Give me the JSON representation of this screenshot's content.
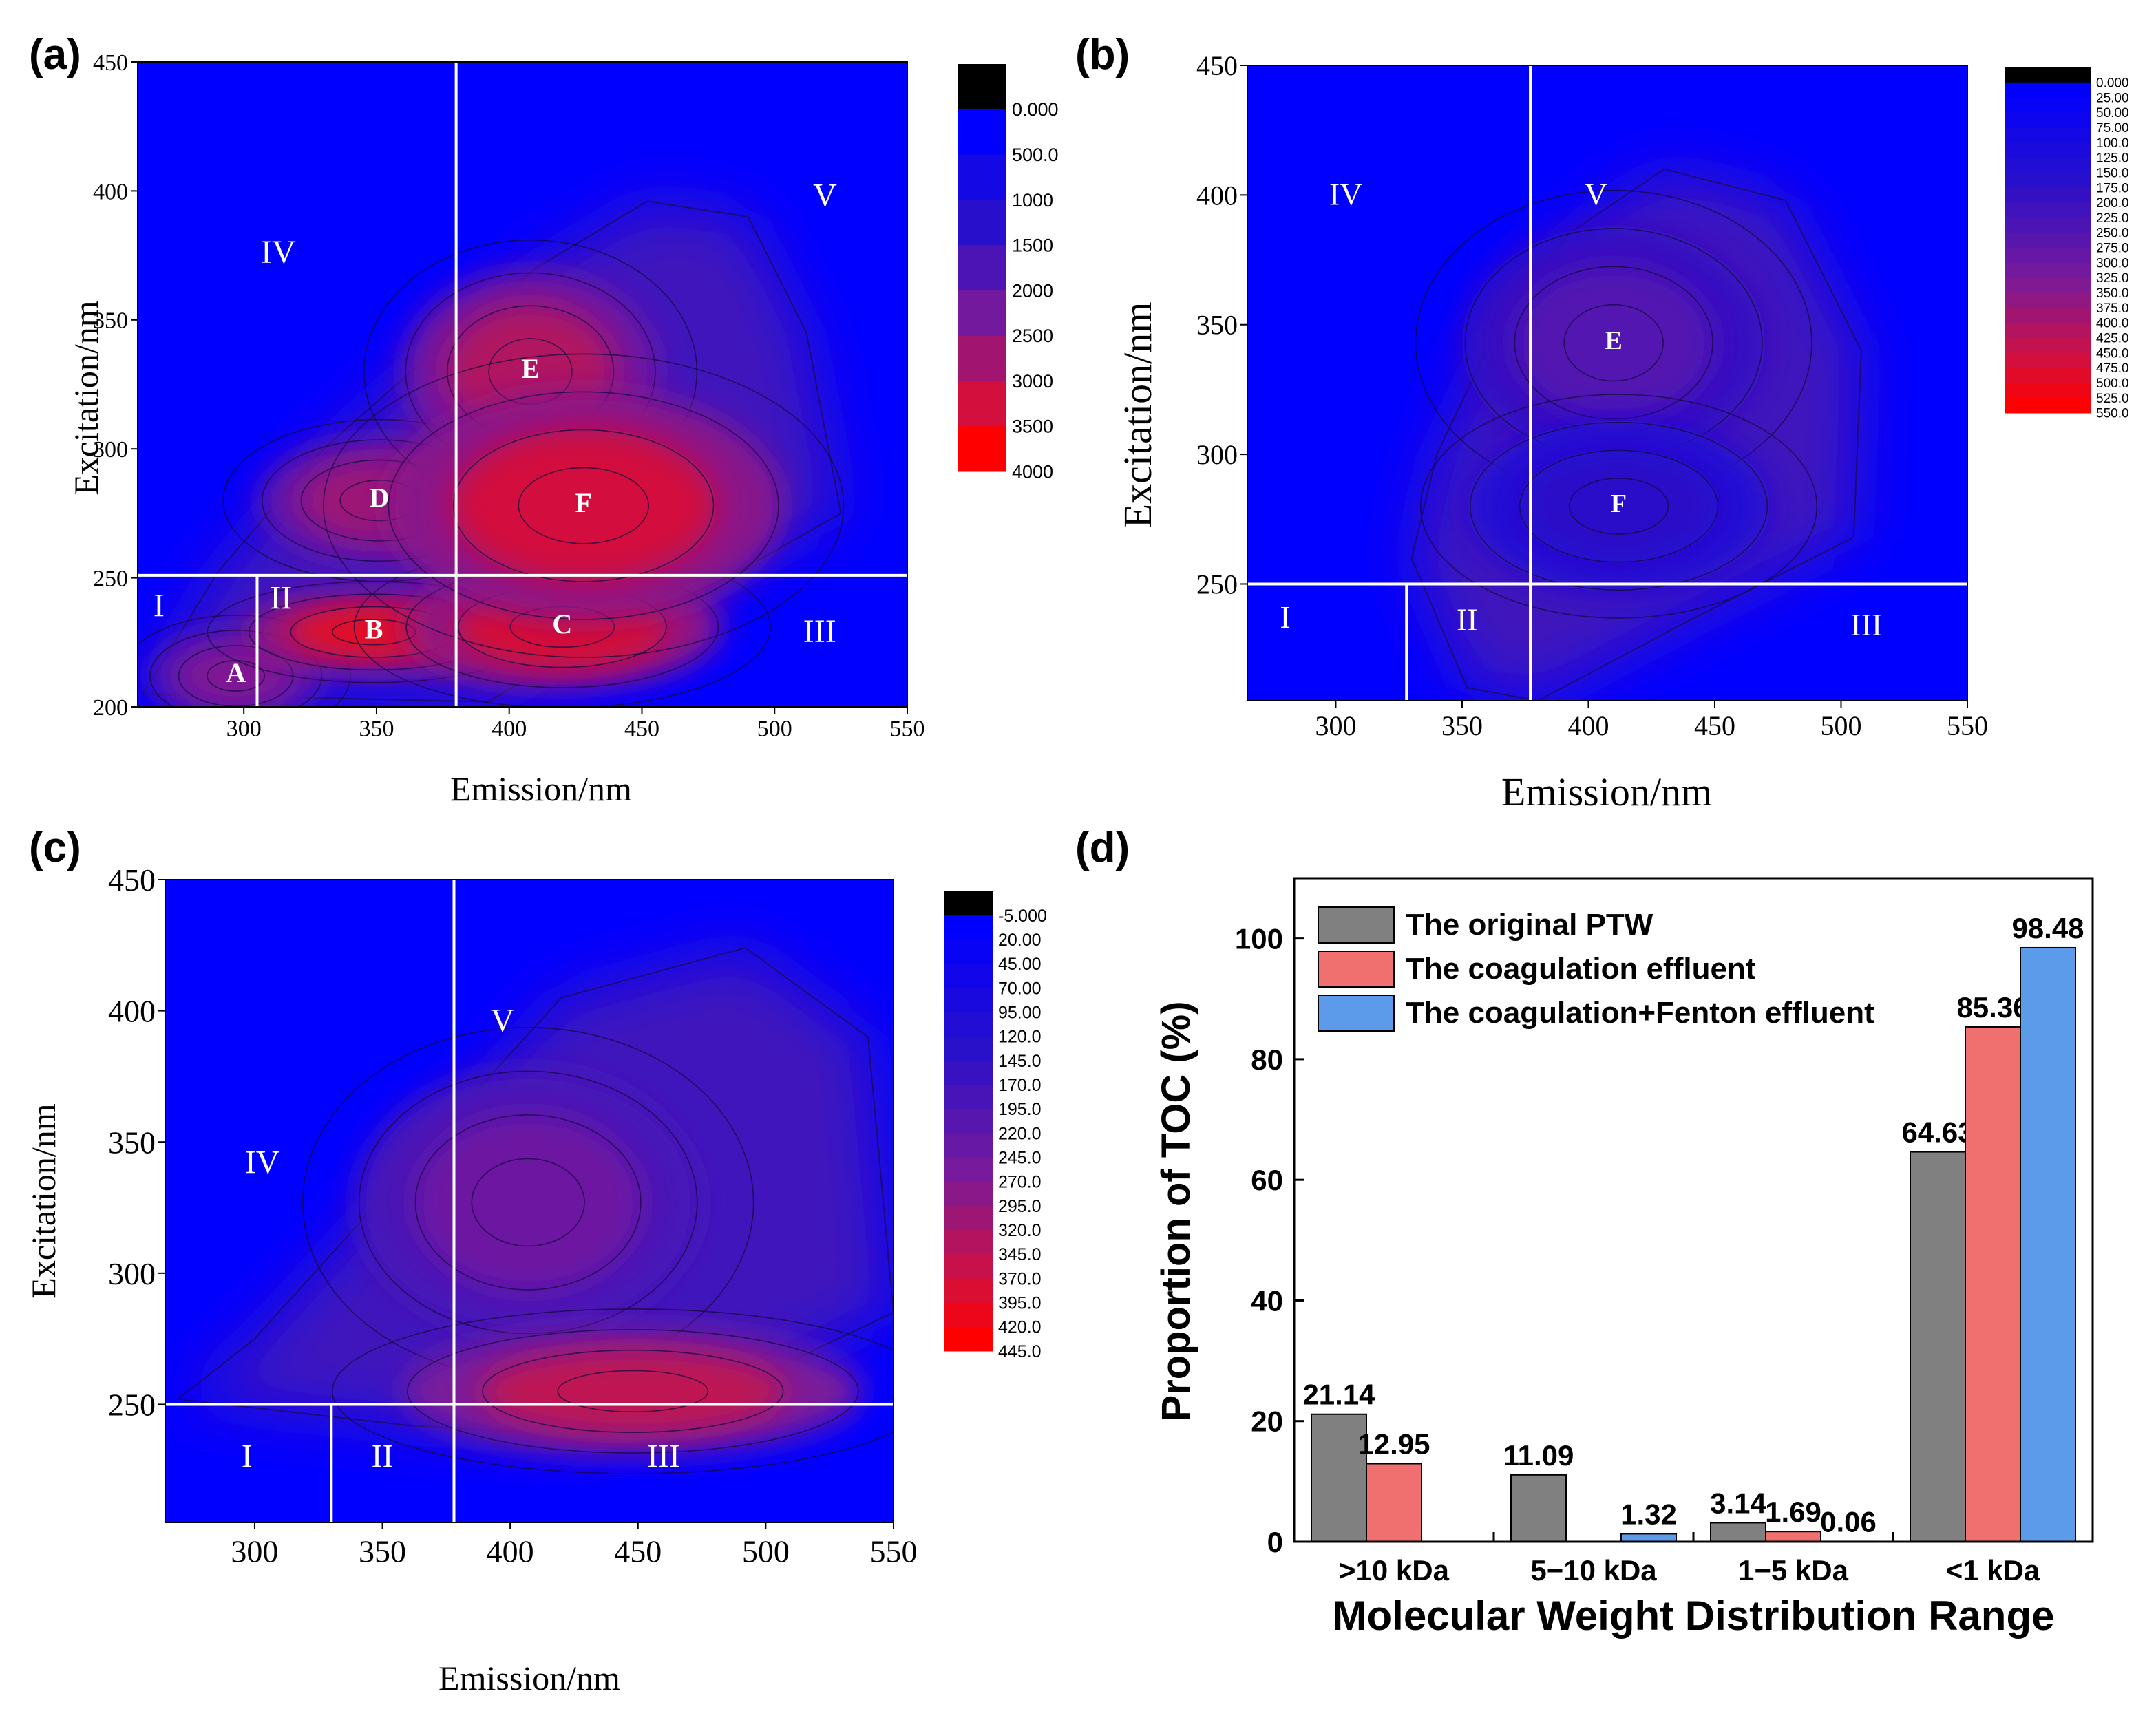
{
  "colors": {
    "plot_bg": "#0000ff",
    "low": "#2a10c8",
    "mid": "#7a1a9a",
    "high": "#d01040",
    "peak": "#ff0000",
    "divider": "#ffffff",
    "bar_gray": "#808080",
    "bar_red": "#f07070",
    "bar_blue": "#5b9bea"
  },
  "chart_data": [
    {
      "panel": "(a)",
      "type": "heatmap",
      "xlabel": "Emission/nm",
      "ylabel": "Excitation/nm",
      "xlim": [
        260,
        550
      ],
      "ylim": [
        200,
        450
      ],
      "xticks": [
        "300",
        "350",
        "400",
        "450",
        "500",
        "550"
      ],
      "yticks": [
        "200",
        "250",
        "300",
        "350",
        "400",
        "450"
      ],
      "dividers": {
        "emission": [
          380,
          305
        ],
        "excitation": 251
      },
      "region_labels": [
        {
          "text": "I",
          "em": 268,
          "ex": 238
        },
        {
          "text": "II",
          "em": 314,
          "ex": 241
        },
        {
          "text": "III",
          "em": 517,
          "ex": 228
        },
        {
          "text": "IV",
          "em": 313,
          "ex": 375
        },
        {
          "text": "V",
          "em": 519,
          "ex": 397
        }
      ],
      "peaks": [
        {
          "text": "A",
          "em": 297,
          "ex": 212,
          "level": 0.62,
          "sx": 22,
          "sy": 12
        },
        {
          "text": "B",
          "em": 349,
          "ex": 229,
          "level": 0.92,
          "sx": 32,
          "sy": 10
        },
        {
          "text": "C",
          "em": 420,
          "ex": 231,
          "level": 0.88,
          "sx": 40,
          "sy": 16
        },
        {
          "text": "D",
          "em": 351,
          "ex": 280,
          "level": 0.7,
          "sx": 30,
          "sy": 16
        },
        {
          "text": "E",
          "em": 408,
          "ex": 330,
          "level": 0.76,
          "sx": 32,
          "sy": 26
        },
        {
          "text": "F",
          "em": 428,
          "ex": 278,
          "level": 0.86,
          "sx": 50,
          "sy": 30
        }
      ],
      "envelope": [
        [
          262,
          205
        ],
        [
          290,
          252
        ],
        [
          330,
          300
        ],
        [
          372,
          338
        ],
        [
          410,
          370
        ],
        [
          452,
          396
        ],
        [
          490,
          390
        ],
        [
          512,
          345
        ],
        [
          525,
          275
        ],
        [
          482,
          250
        ],
        [
          442,
          232
        ],
        [
          392,
          202
        ]
      ],
      "colorbar": [
        "0.000",
        "500.0",
        "1000",
        "1500",
        "2000",
        "2500",
        "3000",
        "3500",
        "4000"
      ]
    },
    {
      "panel": "(b)",
      "type": "heatmap",
      "xlabel": "Emission/nm",
      "ylabel": "Excitation/nm",
      "xlim": [
        265,
        550
      ],
      "ylim": [
        205,
        450
      ],
      "xticks": [
        "300",
        "350",
        "400",
        "450",
        "500",
        "550"
      ],
      "yticks": [
        "250",
        "300",
        "350",
        "400",
        "450"
      ],
      "dividers": {
        "emission": [
          377,
          328
        ],
        "excitation": 250
      },
      "region_labels": [
        {
          "text": "I",
          "em": 280,
          "ex": 236
        },
        {
          "text": "II",
          "em": 352,
          "ex": 235
        },
        {
          "text": "III",
          "em": 510,
          "ex": 233
        },
        {
          "text": "IV",
          "em": 304,
          "ex": 399
        },
        {
          "text": "V",
          "em": 403,
          "ex": 399
        }
      ],
      "peaks": [
        {
          "text": "E",
          "em": 410,
          "ex": 343,
          "level": 0.45,
          "sx": 40,
          "sy": 30
        },
        {
          "text": "F",
          "em": 412,
          "ex": 280,
          "level": 0.3,
          "sx": 40,
          "sy": 22
        }
      ],
      "envelope": [
        [
          330,
          260
        ],
        [
          340,
          300
        ],
        [
          362,
          345
        ],
        [
          392,
          385
        ],
        [
          430,
          410
        ],
        [
          478,
          398
        ],
        [
          508,
          340
        ],
        [
          505,
          268
        ],
        [
          440,
          236
        ],
        [
          380,
          205
        ],
        [
          352,
          210
        ]
      ],
      "colorbar": [
        "0.000",
        "25.00",
        "50.00",
        "75.00",
        "100.0",
        "125.0",
        "150.0",
        "175.0",
        "200.0",
        "225.0",
        "250.0",
        "275.0",
        "300.0",
        "325.0",
        "350.0",
        "375.0",
        "400.0",
        "425.0",
        "450.0",
        "475.0",
        "500.0",
        "525.0",
        "550.0"
      ]
    },
    {
      "panel": "(c)",
      "type": "heatmap",
      "xlabel": "Emission/nm",
      "ylabel": "Excitation/nm",
      "xlim": [
        265,
        550
      ],
      "ylim": [
        205,
        450
      ],
      "xticks": [
        "300",
        "350",
        "400",
        "450",
        "500",
        "550"
      ],
      "yticks": [
        "250",
        "300",
        "350",
        "400",
        "450"
      ],
      "dividers": {
        "emission": [
          378,
          330
        ],
        "excitation": 250
      },
      "region_labels": [
        {
          "text": "I",
          "em": 297,
          "ex": 229
        },
        {
          "text": "II",
          "em": 350,
          "ex": 229
        },
        {
          "text": "III",
          "em": 460,
          "ex": 229
        },
        {
          "text": "IV",
          "em": 303,
          "ex": 341
        },
        {
          "text": "V",
          "em": 397,
          "ex": 395
        }
      ],
      "peaks": [
        {
          "text": "",
          "em": 407,
          "ex": 327,
          "level": 0.55,
          "sx": 45,
          "sy": 34
        },
        {
          "text": "",
          "em": 448,
          "ex": 255,
          "level": 0.8,
          "sx": 60,
          "sy": 16
        }
      ],
      "envelope": [
        [
          270,
          252
        ],
        [
          300,
          275
        ],
        [
          340,
          318
        ],
        [
          378,
          360
        ],
        [
          420,
          405
        ],
        [
          492,
          424
        ],
        [
          540,
          390
        ],
        [
          550,
          285
        ],
        [
          500,
          262
        ],
        [
          470,
          250
        ],
        [
          430,
          238
        ],
        [
          360,
          242
        ]
      ],
      "colorbar": [
        "-5.000",
        "20.00",
        "45.00",
        "70.00",
        "95.00",
        "120.0",
        "145.0",
        "170.0",
        "195.0",
        "220.0",
        "245.0",
        "270.0",
        "295.0",
        "320.0",
        "345.0",
        "370.0",
        "395.0",
        "420.0",
        "445.0"
      ]
    },
    {
      "panel": "(d)",
      "type": "bar",
      "xlabel": "Molecular Weight Distribution Range",
      "ylabel": "Proportion of TOC (%)",
      "categories": [
        ">10 kDa",
        "5−10 kDa",
        "1−5 kDa",
        "<1 kDa"
      ],
      "ylim": [
        0,
        110
      ],
      "yticks": [
        "0",
        "20",
        "40",
        "60",
        "80",
        "100"
      ],
      "legend_position": "top-left",
      "series": [
        {
          "name": "The original PTW",
          "values": [
            21.14,
            11.09,
            3.14,
            64.63
          ],
          "labels": [
            "21.14",
            "11.09",
            "3.14",
            "64.63"
          ]
        },
        {
          "name": "The coagulation effluent",
          "values": [
            12.95,
            0,
            1.69,
            85.36
          ],
          "labels": [
            "12.95",
            "",
            "1.69",
            "85.36"
          ]
        },
        {
          "name": "The coagulation+Fenton effluent",
          "values": [
            0,
            1.32,
            0.06,
            98.48
          ],
          "labels": [
            "",
            "1.32",
            "0.06",
            "98.48"
          ]
        }
      ]
    }
  ]
}
